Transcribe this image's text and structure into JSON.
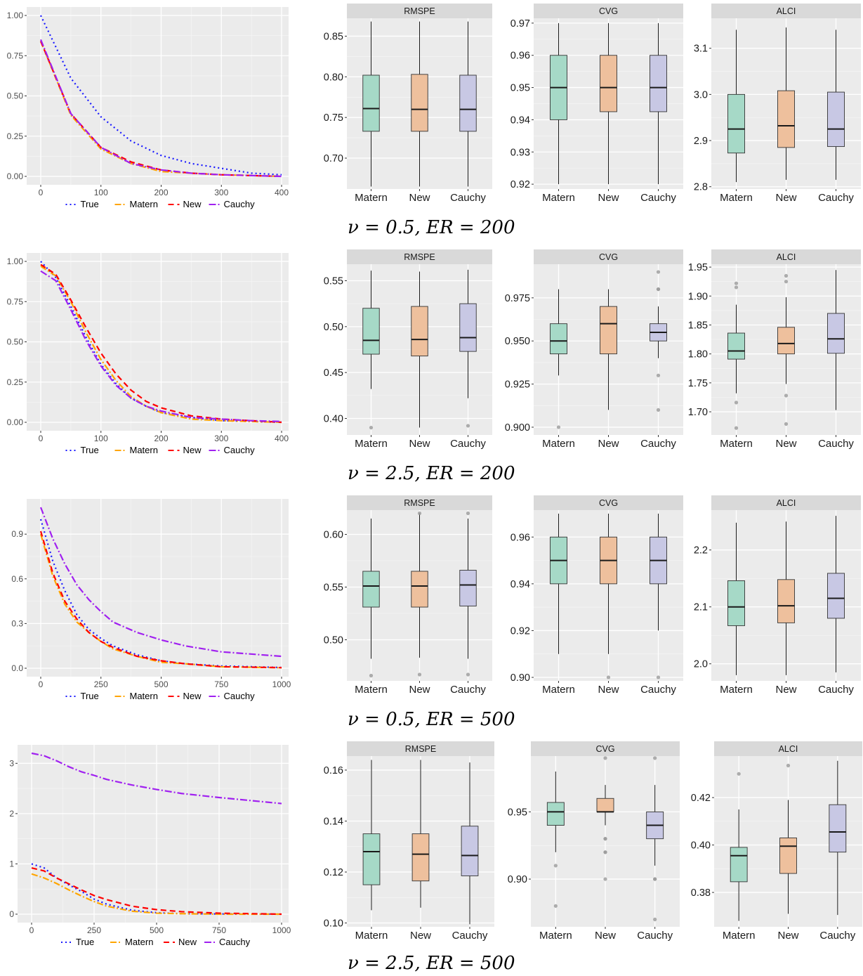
{
  "colors": {
    "true_line": "#1a1aff",
    "matern_line": "#ffa500",
    "new_line": "#ff0000",
    "cauchy_line": "#a020f0",
    "matern_box": "#a6d9c7",
    "new_box": "#eec09d",
    "cauchy_box": "#c8c8e4",
    "panel_bg": "#ebebeb",
    "strip_bg": "#d9d9d9"
  },
  "captions": [
    "ν = 0.5, ER = 200",
    "ν = 2.5, ER = 200",
    "ν = 0.5, ER = 500",
    "ν = 2.5, ER = 500"
  ],
  "chart_data": [
    {
      "type": "line",
      "legend": [
        "True",
        "Matern",
        "New",
        "Cauchy"
      ],
      "legend_position": "bottom",
      "xlim": [
        0,
        400
      ],
      "ylim": [
        0,
        1
      ],
      "xticks": [
        0,
        100,
        200,
        300,
        400
      ],
      "yticks": [
        0,
        0.25,
        0.5,
        0.75,
        1.0
      ],
      "ytick_labels": [
        "0.00",
        "0.25",
        "0.50",
        "0.75",
        "1.00"
      ],
      "x": [
        0,
        50,
        100,
        150,
        200,
        250,
        300,
        350,
        400
      ],
      "series": [
        {
          "name": "True",
          "values": [
            1.0,
            0.61,
            0.37,
            0.22,
            0.13,
            0.08,
            0.05,
            0.02,
            0.01
          ]
        },
        {
          "name": "Matern",
          "values": [
            0.84,
            0.38,
            0.17,
            0.08,
            0.03,
            0.02,
            0.01,
            0.005,
            0.0
          ]
        },
        {
          "name": "New",
          "values": [
            0.84,
            0.39,
            0.18,
            0.09,
            0.04,
            0.02,
            0.01,
            0.005,
            0.0
          ]
        },
        {
          "name": "Cauchy",
          "values": [
            0.85,
            0.39,
            0.18,
            0.08,
            0.04,
            0.02,
            0.01,
            0.005,
            0.0
          ]
        }
      ]
    },
    {
      "type": "box",
      "title": "RMSPE",
      "categories": [
        "Matern",
        "New",
        "Cauchy"
      ],
      "ylim": [
        0.662,
        0.872
      ],
      "yticks": [
        0.7,
        0.75,
        0.8,
        0.85
      ],
      "ytick_labels": [
        "0.70",
        "0.75",
        "0.80",
        "0.85"
      ],
      "boxes": [
        {
          "min": 0.665,
          "q1": 0.733,
          "median": 0.761,
          "q3": 0.802,
          "max": 0.868,
          "outliers": []
        },
        {
          "min": 0.665,
          "q1": 0.733,
          "median": 0.76,
          "q3": 0.803,
          "max": 0.868,
          "outliers": []
        },
        {
          "min": 0.665,
          "q1": 0.733,
          "median": 0.76,
          "q3": 0.802,
          "max": 0.868,
          "outliers": []
        }
      ]
    },
    {
      "type": "box",
      "title": "CVG",
      "categories": [
        "Matern",
        "New",
        "Cauchy"
      ],
      "ylim": [
        0.9185,
        0.9715
      ],
      "yticks": [
        0.92,
        0.93,
        0.94,
        0.95,
        0.96,
        0.97
      ],
      "ytick_labels": [
        "0.92",
        "0.93",
        "0.94",
        "0.95",
        "0.96",
        "0.97"
      ],
      "boxes": [
        {
          "min": 0.92,
          "q1": 0.94,
          "median": 0.95,
          "q3": 0.96,
          "max": 0.97,
          "outliers": []
        },
        {
          "min": 0.92,
          "q1": 0.9425,
          "median": 0.95,
          "q3": 0.96,
          "max": 0.97,
          "outliers": []
        },
        {
          "min": 0.92,
          "q1": 0.9425,
          "median": 0.95,
          "q3": 0.96,
          "max": 0.97,
          "outliers": []
        }
      ]
    },
    {
      "type": "box",
      "title": "ALCI",
      "categories": [
        "Matern",
        "New",
        "Cauchy"
      ],
      "ylim": [
        2.795,
        3.165
      ],
      "yticks": [
        2.8,
        2.9,
        3.0,
        3.1
      ],
      "ytick_labels": [
        "2.8",
        "2.9",
        "3.0",
        "3.1"
      ],
      "boxes": [
        {
          "min": 2.81,
          "q1": 2.873,
          "median": 2.925,
          "q3": 3.0,
          "max": 3.14,
          "outliers": []
        },
        {
          "min": 2.815,
          "q1": 2.885,
          "median": 2.932,
          "q3": 3.008,
          "max": 3.145,
          "outliers": []
        },
        {
          "min": 2.815,
          "q1": 2.887,
          "median": 2.925,
          "q3": 3.005,
          "max": 3.14,
          "outliers": []
        }
      ]
    },
    {
      "type": "line",
      "legend": [
        "True",
        "Matern",
        "New",
        "Cauchy"
      ],
      "legend_position": "bottom",
      "xlim": [
        0,
        400
      ],
      "ylim": [
        0,
        1
      ],
      "xticks": [
        0,
        100,
        200,
        300,
        400
      ],
      "yticks": [
        0,
        0.25,
        0.5,
        0.75,
        1.0
      ],
      "ytick_labels": [
        "0.00",
        "0.25",
        "0.50",
        "0.75",
        "1.00"
      ],
      "x": [
        0,
        25,
        50,
        75,
        100,
        125,
        150,
        175,
        200,
        250,
        300,
        350,
        400
      ],
      "series": [
        {
          "name": "True",
          "values": [
            1.0,
            0.9,
            0.72,
            0.53,
            0.36,
            0.24,
            0.15,
            0.1,
            0.06,
            0.03,
            0.01,
            0.005,
            0.0
          ]
        },
        {
          "name": "Matern",
          "values": [
            0.97,
            0.91,
            0.75,
            0.56,
            0.39,
            0.26,
            0.16,
            0.1,
            0.06,
            0.02,
            0.01,
            0.005,
            0.0
          ]
        },
        {
          "name": "New",
          "values": [
            0.98,
            0.92,
            0.76,
            0.59,
            0.43,
            0.3,
            0.2,
            0.13,
            0.09,
            0.04,
            0.02,
            0.01,
            0.0
          ]
        },
        {
          "name": "Cauchy",
          "values": [
            0.94,
            0.88,
            0.7,
            0.51,
            0.35,
            0.23,
            0.15,
            0.1,
            0.07,
            0.03,
            0.02,
            0.01,
            0.005
          ]
        }
      ]
    },
    {
      "type": "box",
      "title": "RMSPE",
      "categories": [
        "Matern",
        "New",
        "Cauchy"
      ],
      "ylim": [
        0.382,
        0.568
      ],
      "yticks": [
        0.4,
        0.45,
        0.5,
        0.55
      ],
      "ytick_labels": [
        "0.40",
        "0.45",
        "0.50",
        "0.55"
      ],
      "boxes": [
        {
          "min": 0.432,
          "q1": 0.47,
          "median": 0.485,
          "q3": 0.52,
          "max": 0.561,
          "outliers": [
            0.39
          ]
        },
        {
          "min": 0.39,
          "q1": 0.468,
          "median": 0.486,
          "q3": 0.522,
          "max": 0.56,
          "outliers": []
        },
        {
          "min": 0.422,
          "q1": 0.473,
          "median": 0.488,
          "q3": 0.525,
          "max": 0.562,
          "outliers": [
            0.392
          ]
        }
      ]
    },
    {
      "type": "box",
      "title": "CVG",
      "categories": [
        "Matern",
        "New",
        "Cauchy"
      ],
      "ylim": [
        0.8955,
        0.9945
      ],
      "yticks": [
        0.9,
        0.925,
        0.95,
        0.975
      ],
      "ytick_labels": [
        "0.900",
        "0.925",
        "0.950",
        "0.975"
      ],
      "boxes": [
        {
          "min": 0.93,
          "q1": 0.9425,
          "median": 0.95,
          "q3": 0.96,
          "max": 0.98,
          "outliers": [
            0.9
          ]
        },
        {
          "min": 0.91,
          "q1": 0.9425,
          "median": 0.96,
          "q3": 0.97,
          "max": 0.98,
          "outliers": []
        },
        {
          "min": 0.94,
          "q1": 0.95,
          "median": 0.955,
          "q3": 0.96,
          "max": 0.97,
          "outliers": [
            0.99,
            0.98,
            0.98,
            0.93,
            0.91
          ]
        }
      ]
    },
    {
      "type": "box",
      "title": "ALCI",
      "categories": [
        "Matern",
        "New",
        "Cauchy"
      ],
      "ylim": [
        1.66,
        1.955
      ],
      "yticks": [
        1.7,
        1.75,
        1.8,
        1.85,
        1.9,
        1.95
      ],
      "ytick_labels": [
        "1.70",
        "1.75",
        "1.80",
        "1.85",
        "1.90",
        "1.95"
      ],
      "boxes": [
        {
          "min": 1.732,
          "q1": 1.791,
          "median": 1.805,
          "q3": 1.836,
          "max": 1.885,
          "outliers": [
            1.922,
            1.915,
            1.716,
            1.672
          ]
        },
        {
          "min": 1.748,
          "q1": 1.8,
          "median": 1.818,
          "q3": 1.846,
          "max": 1.898,
          "outliers": [
            1.935,
            1.925,
            1.728,
            1.679
          ]
        },
        {
          "min": 1.703,
          "q1": 1.801,
          "median": 1.826,
          "q3": 1.87,
          "max": 1.945,
          "outliers": []
        }
      ]
    },
    {
      "type": "line",
      "legend": [
        "True",
        "Matern",
        "New",
        "Cauchy"
      ],
      "legend_position": "bottom",
      "xlim": [
        0,
        1000
      ],
      "ylim": [
        0,
        1.08
      ],
      "xticks": [
        0,
        250,
        500,
        750,
        1000
      ],
      "yticks": [
        0,
        0.3,
        0.6,
        0.9
      ],
      "ytick_labels": [
        "0.0",
        "0.3",
        "0.6",
        "0.9"
      ],
      "x": [
        0,
        50,
        100,
        150,
        200,
        250,
        300,
        400,
        500,
        600,
        750,
        1000
      ],
      "series": [
        {
          "name": "True",
          "values": [
            1.0,
            0.72,
            0.52,
            0.36,
            0.26,
            0.2,
            0.15,
            0.09,
            0.05,
            0.03,
            0.015,
            0.005
          ]
        },
        {
          "name": "Matern",
          "values": [
            0.9,
            0.62,
            0.43,
            0.31,
            0.24,
            0.18,
            0.13,
            0.08,
            0.04,
            0.03,
            0.01,
            0.003
          ]
        },
        {
          "name": "New",
          "values": [
            0.92,
            0.64,
            0.45,
            0.33,
            0.24,
            0.18,
            0.14,
            0.08,
            0.05,
            0.03,
            0.01,
            0.004
          ]
        },
        {
          "name": "Cauchy",
          "values": [
            1.08,
            0.87,
            0.7,
            0.56,
            0.46,
            0.38,
            0.31,
            0.24,
            0.19,
            0.15,
            0.11,
            0.08
          ]
        }
      ]
    },
    {
      "type": "box",
      "title": "RMSPE",
      "categories": [
        "Matern",
        "New",
        "Cauchy"
      ],
      "ylim": [
        0.461,
        0.623
      ],
      "yticks": [
        0.5,
        0.55,
        0.6
      ],
      "ytick_labels": [
        "0.50",
        "0.55",
        "0.60"
      ],
      "boxes": [
        {
          "min": 0.482,
          "q1": 0.531,
          "median": 0.551,
          "q3": 0.565,
          "max": 0.615,
          "outliers": [
            0.466
          ]
        },
        {
          "min": 0.483,
          "q1": 0.531,
          "median": 0.551,
          "q3": 0.565,
          "max": 0.62,
          "outliers": [
            0.62,
            0.467
          ]
        },
        {
          "min": 0.482,
          "q1": 0.532,
          "median": 0.552,
          "q3": 0.566,
          "max": 0.615,
          "outliers": [
            0.62,
            0.467
          ]
        }
      ]
    },
    {
      "type": "box",
      "title": "CVG",
      "categories": [
        "Matern",
        "New",
        "Cauchy"
      ],
      "ylim": [
        0.8985,
        0.9715
      ],
      "yticks": [
        0.9,
        0.92,
        0.94,
        0.96
      ],
      "ytick_labels": [
        "0.90",
        "0.92",
        "0.94",
        "0.96"
      ],
      "boxes": [
        {
          "min": 0.91,
          "q1": 0.94,
          "median": 0.95,
          "q3": 0.96,
          "max": 0.97,
          "outliers": []
        },
        {
          "min": 0.91,
          "q1": 0.94,
          "median": 0.95,
          "q3": 0.96,
          "max": 0.97,
          "outliers": [
            0.9
          ]
        },
        {
          "min": 0.92,
          "q1": 0.94,
          "median": 0.95,
          "q3": 0.96,
          "max": 0.97,
          "outliers": [
            0.9
          ]
        }
      ]
    },
    {
      "type": "box",
      "title": "ALCI",
      "categories": [
        "Matern",
        "New",
        "Cauchy"
      ],
      "ylim": [
        1.97,
        2.27
      ],
      "yticks": [
        2.0,
        2.1,
        2.2
      ],
      "ytick_labels": [
        "2.0",
        "2.1",
        "2.2"
      ],
      "boxes": [
        {
          "min": 1.98,
          "q1": 2.067,
          "median": 2.1,
          "q3": 2.146,
          "max": 2.248,
          "outliers": []
        },
        {
          "min": 1.98,
          "q1": 2.072,
          "median": 2.102,
          "q3": 2.148,
          "max": 2.25,
          "outliers": []
        },
        {
          "min": 1.985,
          "q1": 2.08,
          "median": 2.115,
          "q3": 2.159,
          "max": 2.26,
          "outliers": []
        }
      ]
    },
    {
      "type": "line",
      "legend": [
        "True",
        "Matern",
        "New",
        "Cauchy"
      ],
      "legend_position": "bottom",
      "xlim": [
        0,
        1000
      ],
      "ylim": [
        0,
        3.2
      ],
      "xticks": [
        0,
        250,
        500,
        750,
        1000
      ],
      "yticks": [
        0,
        1,
        2,
        3
      ],
      "ytick_labels": [
        "0",
        "1",
        "2",
        "3"
      ],
      "x": [
        0,
        50,
        100,
        150,
        200,
        250,
        300,
        400,
        500,
        600,
        750,
        1000
      ],
      "series": [
        {
          "name": "True",
          "values": [
            1.0,
            0.92,
            0.72,
            0.58,
            0.45,
            0.3,
            0.2,
            0.08,
            0.03,
            0.01,
            0.005,
            0.0
          ]
        },
        {
          "name": "Matern",
          "values": [
            0.8,
            0.72,
            0.61,
            0.48,
            0.36,
            0.25,
            0.16,
            0.06,
            0.02,
            0.01,
            0.0,
            0.0
          ]
        },
        {
          "name": "New",
          "values": [
            0.92,
            0.86,
            0.72,
            0.6,
            0.48,
            0.37,
            0.29,
            0.16,
            0.09,
            0.05,
            0.02,
            0.0
          ]
        },
        {
          "name": "Cauchy",
          "values": [
            3.2,
            3.15,
            3.05,
            2.93,
            2.83,
            2.76,
            2.68,
            2.57,
            2.48,
            2.4,
            2.32,
            2.2
          ]
        }
      ]
    },
    {
      "type": "box",
      "title": "RMSPE",
      "categories": [
        "Matern",
        "New",
        "Cauchy"
      ],
      "ylim": [
        0.0985,
        0.1655
      ],
      "yticks": [
        0.1,
        0.12,
        0.14,
        0.16
      ],
      "ytick_labels": [
        "0.10",
        "0.12",
        "0.14",
        "0.16"
      ],
      "boxes": [
        {
          "min": 0.105,
          "q1": 0.115,
          "median": 0.128,
          "q3": 0.135,
          "max": 0.164,
          "outliers": []
        },
        {
          "min": 0.106,
          "q1": 0.1165,
          "median": 0.127,
          "q3": 0.135,
          "max": 0.164,
          "outliers": []
        },
        {
          "min": 0.0995,
          "q1": 0.1185,
          "median": 0.1265,
          "q3": 0.138,
          "max": 0.163,
          "outliers": []
        }
      ]
    },
    {
      "type": "box",
      "title": "CVG",
      "categories": [
        "Matern",
        "New",
        "Cauchy"
      ],
      "ylim": [
        0.8645,
        0.9915
      ],
      "yticks": [
        0.9,
        0.95
      ],
      "ytick_labels": [
        "0.90",
        "0.95"
      ],
      "boxes": [
        {
          "min": 0.92,
          "q1": 0.94,
          "median": 0.95,
          "q3": 0.957,
          "max": 0.98,
          "outliers": [
            0.91,
            0.88
          ]
        },
        {
          "min": 0.94,
          "q1": 0.95,
          "median": 0.95,
          "q3": 0.96,
          "max": 0.97,
          "outliers": [
            0.99,
            0.93,
            0.93,
            0.92,
            0.92,
            0.9
          ]
        },
        {
          "min": 0.91,
          "q1": 0.93,
          "median": 0.94,
          "q3": 0.95,
          "max": 0.97,
          "outliers": [
            0.99,
            0.9,
            0.9,
            0.87
          ]
        }
      ]
    },
    {
      "type": "box",
      "title": "ALCI",
      "categories": [
        "Matern",
        "New",
        "Cauchy"
      ],
      "ylim": [
        0.3655,
        0.4375
      ],
      "yticks": [
        0.38,
        0.4,
        0.42
      ],
      "ytick_labels": [
        "0.38",
        "0.40",
        "0.42"
      ],
      "boxes": [
        {
          "min": 0.368,
          "q1": 0.3845,
          "median": 0.3955,
          "q3": 0.399,
          "max": 0.415,
          "outliers": [
            0.43
          ]
        },
        {
          "min": 0.371,
          "q1": 0.388,
          "median": 0.3995,
          "q3": 0.403,
          "max": 0.419,
          "outliers": [
            0.4335
          ]
        },
        {
          "min": 0.3705,
          "q1": 0.397,
          "median": 0.4055,
          "q3": 0.417,
          "max": 0.4355,
          "outliers": []
        }
      ]
    }
  ]
}
